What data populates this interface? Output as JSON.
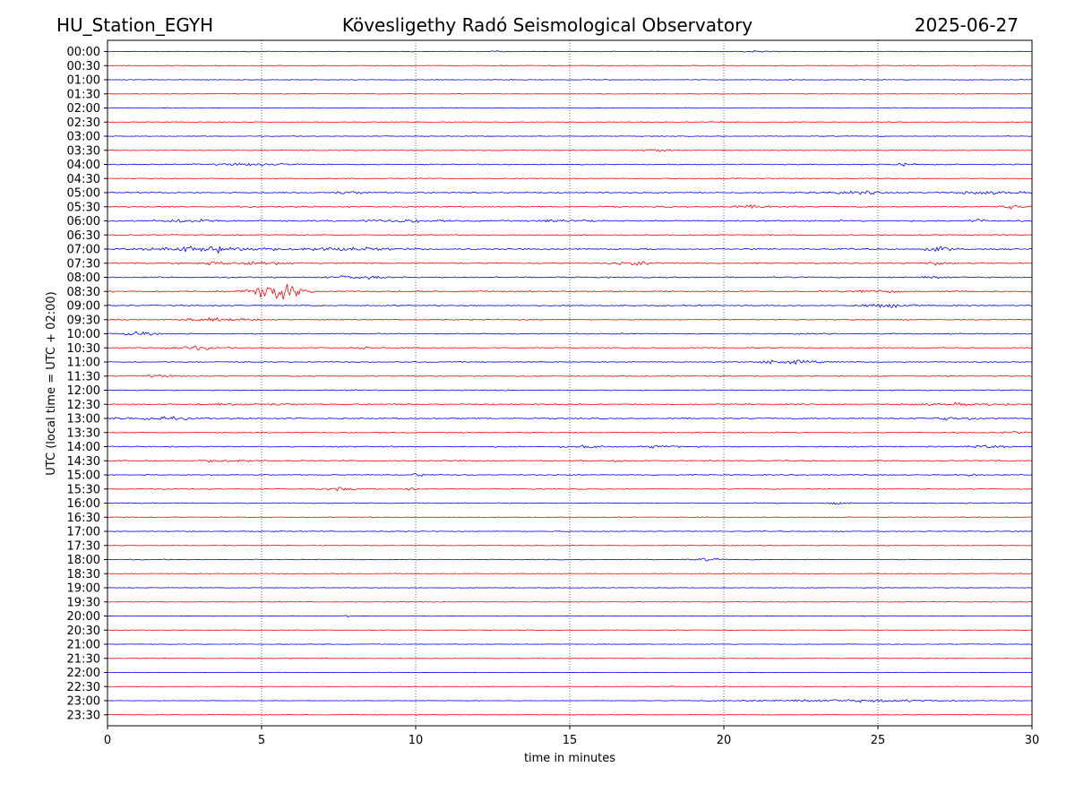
{
  "header": {
    "station": "HU_Station_EGYH",
    "observatory": "Kövesligethy Radó Seismological Observatory",
    "date": "2025-06-27"
  },
  "chart_data": {
    "type": "line",
    "title": "Kövesligethy Radó Seismological Observatory",
    "xlabel": "time in minutes",
    "ylabel": "UTC (local time = UTC + 02:00)",
    "xlim": [
      0,
      30
    ],
    "x_ticks": [
      0,
      5,
      10,
      15,
      20,
      25,
      30
    ],
    "grid_x": true,
    "series_colors": [
      "#0000ff",
      "#ff0000"
    ],
    "rows": [
      {
        "label": "00:00",
        "color": "#0000ff",
        "noise": 0.3,
        "events": [
          {
            "t": 12.6,
            "a": 1.2,
            "w": 0.1
          },
          {
            "t": 21.2,
            "a": 0.6,
            "w": 0.4
          }
        ]
      },
      {
        "label": "00:30",
        "color": "#ff0000",
        "noise": 0.3,
        "events": []
      },
      {
        "label": "01:00",
        "color": "#0000ff",
        "noise": 0.32,
        "events": []
      },
      {
        "label": "01:30",
        "color": "#ff0000",
        "noise": 0.28,
        "events": []
      },
      {
        "label": "02:00",
        "color": "#0000ff",
        "noise": 0.3,
        "events": []
      },
      {
        "label": "02:30",
        "color": "#ff0000",
        "noise": 0.3,
        "events": [
          {
            "t": 19.8,
            "a": 0.5,
            "w": 0.3
          }
        ]
      },
      {
        "label": "03:00",
        "color": "#0000ff",
        "noise": 0.28,
        "events": []
      },
      {
        "label": "03:30",
        "color": "#ff0000",
        "noise": 0.3,
        "events": [
          {
            "t": 17.8,
            "a": 1.3,
            "w": 0.4
          }
        ]
      },
      {
        "label": "04:00",
        "color": "#0000ff",
        "noise": 0.45,
        "events": [
          {
            "t": 4.8,
            "a": 0.8,
            "w": 1.2
          },
          {
            "t": 25.7,
            "a": 1.0,
            "w": 0.6
          }
        ]
      },
      {
        "label": "04:30",
        "color": "#ff0000",
        "noise": 0.4,
        "events": [
          {
            "t": 20.2,
            "a": 0.6,
            "w": 0.3
          }
        ]
      },
      {
        "label": "05:00",
        "color": "#0000ff",
        "noise": 0.55,
        "events": [
          {
            "t": 7.8,
            "a": 0.8,
            "w": 0.8
          },
          {
            "t": 24.5,
            "a": 0.8,
            "w": 1.2
          },
          {
            "t": 28.5,
            "a": 0.9,
            "w": 1.2
          }
        ]
      },
      {
        "label": "05:30",
        "color": "#ff0000",
        "noise": 0.55,
        "events": [
          {
            "t": 21.0,
            "a": 0.9,
            "w": 1.0
          },
          {
            "t": 29.5,
            "a": 1.4,
            "w": 0.6
          }
        ]
      },
      {
        "label": "06:00",
        "color": "#0000ff",
        "noise": 0.65,
        "events": [
          {
            "t": 2.7,
            "a": 1.2,
            "w": 0.8
          },
          {
            "t": 9.6,
            "a": 1.1,
            "w": 1.0
          },
          {
            "t": 14.8,
            "a": 1.0,
            "w": 0.8
          },
          {
            "t": 28.2,
            "a": 1.1,
            "w": 0.5
          }
        ]
      },
      {
        "label": "06:30",
        "color": "#ff0000",
        "noise": 0.45,
        "events": []
      },
      {
        "label": "07:00",
        "color": "#0000ff",
        "noise": 0.6,
        "events": [
          {
            "t": 3.2,
            "a": 2.4,
            "w": 1.6
          },
          {
            "t": 7.5,
            "a": 1.3,
            "w": 1.8
          },
          {
            "t": 27.0,
            "a": 1.6,
            "w": 0.5
          }
        ]
      },
      {
        "label": "07:30",
        "color": "#ff0000",
        "noise": 0.5,
        "events": [
          {
            "t": 4.4,
            "a": 1.3,
            "w": 1.6
          },
          {
            "t": 17.2,
            "a": 1.3,
            "w": 0.8
          },
          {
            "t": 26.9,
            "a": 1.2,
            "w": 0.3
          }
        ]
      },
      {
        "label": "08:00",
        "color": "#0000ff",
        "noise": 0.55,
        "events": [
          {
            "t": 8.1,
            "a": 1.5,
            "w": 0.7
          },
          {
            "t": 26.8,
            "a": 0.8,
            "w": 0.6
          }
        ]
      },
      {
        "label": "08:30",
        "color": "#ff0000",
        "noise": 0.6,
        "events": [
          {
            "t": 5.5,
            "a": 9.0,
            "w": 0.7
          },
          {
            "t": 24.8,
            "a": 1.7,
            "w": 0.6
          }
        ]
      },
      {
        "label": "09:00",
        "color": "#0000ff",
        "noise": 0.5,
        "events": [
          {
            "t": 25.2,
            "a": 1.4,
            "w": 0.8
          }
        ]
      },
      {
        "label": "09:30",
        "color": "#ff0000",
        "noise": 0.45,
        "events": [
          {
            "t": 3.5,
            "a": 1.2,
            "w": 1.2
          }
        ]
      },
      {
        "label": "10:00",
        "color": "#0000ff",
        "noise": 0.5,
        "events": [
          {
            "t": 1.0,
            "a": 1.8,
            "w": 0.4
          }
        ]
      },
      {
        "label": "10:30",
        "color": "#ff0000",
        "noise": 0.45,
        "events": [
          {
            "t": 2.8,
            "a": 1.3,
            "w": 0.9
          },
          {
            "t": 8.4,
            "a": 0.8,
            "w": 0.3
          }
        ]
      },
      {
        "label": "11:00",
        "color": "#0000ff",
        "noise": 0.45,
        "events": [
          {
            "t": 22.0,
            "a": 1.4,
            "w": 1.0
          }
        ]
      },
      {
        "label": "11:30",
        "color": "#ff0000",
        "noise": 0.4,
        "events": [
          {
            "t": 1.6,
            "a": 0.8,
            "w": 0.6
          }
        ]
      },
      {
        "label": "12:00",
        "color": "#0000ff",
        "noise": 0.45,
        "events": []
      },
      {
        "label": "12:30",
        "color": "#ff0000",
        "noise": 0.55,
        "events": [
          {
            "t": 4.5,
            "a": 0.8,
            "w": 1.4
          },
          {
            "t": 28.0,
            "a": 0.8,
            "w": 1.5
          }
        ]
      },
      {
        "label": "13:00",
        "color": "#0000ff",
        "noise": 0.55,
        "events": [
          {
            "t": 1.5,
            "a": 1.1,
            "w": 1.2
          },
          {
            "t": 27.5,
            "a": 1.0,
            "w": 1.0
          }
        ]
      },
      {
        "label": "13:30",
        "color": "#ff0000",
        "noise": 0.45,
        "events": [
          {
            "t": 29.5,
            "a": 0.8,
            "w": 0.5
          }
        ]
      },
      {
        "label": "14:00",
        "color": "#0000ff",
        "noise": 0.5,
        "events": [
          {
            "t": 15.5,
            "a": 1.2,
            "w": 0.6
          },
          {
            "t": 18.0,
            "a": 1.1,
            "w": 0.5
          },
          {
            "t": 28.5,
            "a": 1.0,
            "w": 0.6
          }
        ]
      },
      {
        "label": "14:30",
        "color": "#ff0000",
        "noise": 0.5,
        "events": [
          {
            "t": 3.8,
            "a": 1.0,
            "w": 1.0
          },
          {
            "t": 16.5,
            "a": 1.0,
            "w": 0.4
          }
        ]
      },
      {
        "label": "15:00",
        "color": "#0000ff",
        "noise": 0.45,
        "events": [
          {
            "t": 10.0,
            "a": 1.1,
            "w": 0.3
          },
          {
            "t": 28.0,
            "a": 0.8,
            "w": 0.3
          }
        ]
      },
      {
        "label": "15:30",
        "color": "#ff0000",
        "noise": 0.4,
        "events": [
          {
            "t": 7.6,
            "a": 1.3,
            "w": 0.6
          },
          {
            "t": 9.9,
            "a": 1.8,
            "w": 0.15
          }
        ]
      },
      {
        "label": "16:00",
        "color": "#0000ff",
        "noise": 0.4,
        "events": [
          {
            "t": 23.8,
            "a": 1.0,
            "w": 0.3
          }
        ]
      },
      {
        "label": "16:30",
        "color": "#ff0000",
        "noise": 0.3,
        "events": []
      },
      {
        "label": "17:00",
        "color": "#0000ff",
        "noise": 0.38,
        "events": []
      },
      {
        "label": "17:30",
        "color": "#ff0000",
        "noise": 0.3,
        "events": []
      },
      {
        "label": "18:00",
        "color": "#0000ff",
        "noise": 0.35,
        "events": [
          {
            "t": 19.5,
            "a": 1.0,
            "w": 0.4
          }
        ]
      },
      {
        "label": "18:30",
        "color": "#ff0000",
        "noise": 0.25,
        "events": []
      },
      {
        "label": "19:00",
        "color": "#0000ff",
        "noise": 0.25,
        "events": []
      },
      {
        "label": "19:30",
        "color": "#ff0000",
        "noise": 0.25,
        "events": []
      },
      {
        "label": "20:00",
        "color": "#0000ff",
        "noise": 0.22,
        "events": [
          {
            "t": 7.8,
            "a": 1.0,
            "w": 0.1
          }
        ]
      },
      {
        "label": "20:30",
        "color": "#ff0000",
        "noise": 0.25,
        "events": []
      },
      {
        "label": "21:00",
        "color": "#0000ff",
        "noise": 0.28,
        "events": []
      },
      {
        "label": "21:30",
        "color": "#ff0000",
        "noise": 0.22,
        "events": []
      },
      {
        "label": "22:00",
        "color": "#0000ff",
        "noise": 0.22,
        "events": []
      },
      {
        "label": "22:30",
        "color": "#ff0000",
        "noise": 0.22,
        "events": [
          {
            "t": 18.3,
            "a": 0.8,
            "w": 0.1
          }
        ]
      },
      {
        "label": "23:00",
        "color": "#0000ff",
        "noise": 0.2,
        "events": [
          {
            "t": 24.0,
            "a": 1.1,
            "w": 3.5
          }
        ]
      },
      {
        "label": "23:30",
        "color": "#ff0000",
        "noise": 0.25,
        "events": []
      }
    ]
  }
}
